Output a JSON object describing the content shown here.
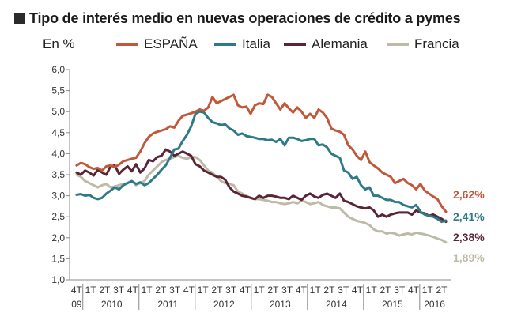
{
  "title": "Tipo de interés medio en nuevas operaciones de crédito a pymes",
  "unit_label": "En %",
  "colors": {
    "espana": "#c0583a",
    "italia": "#2f7a88",
    "alemania": "#5a2536",
    "francia": "#bdbaa6",
    "axis": "#888888"
  },
  "chart_data": {
    "type": "line",
    "title": "Tipo de interés medio en nuevas operaciones de crédito a pymes",
    "ylabel": "En %",
    "ylim": [
      1.0,
      6.0
    ],
    "yticks": [
      "6,0",
      "5,5",
      "5,0",
      "4,5",
      "4,0",
      "3,5",
      "3,0",
      "2,5",
      "2,0",
      "1,5",
      "1,0"
    ],
    "ytick_values": [
      6.0,
      5.5,
      5.0,
      4.5,
      4.0,
      3.5,
      3.0,
      2.5,
      2.0,
      1.5,
      1.0
    ],
    "quarter_labels": [
      "4T",
      "1T",
      "2T",
      "3T",
      "4T",
      "1T",
      "2T",
      "3T",
      "4T",
      "1T",
      "2T",
      "3T",
      "4T",
      "1T",
      "2T",
      "3T",
      "4T",
      "1T",
      "2T",
      "3T",
      "4T",
      "1T",
      "2T",
      "3T",
      "4T",
      "1T",
      "2T"
    ],
    "year_labels": [
      "09",
      "2010",
      "2011",
      "2012",
      "2013",
      "2014",
      "2015",
      "2016"
    ],
    "year_label_quarter_index": [
      0,
      2.5,
      6.5,
      10.5,
      14.5,
      18.5,
      22.5,
      25.5
    ],
    "x_start_label": "4T 2009",
    "months_per_point": 1,
    "series": [
      {
        "name": "ESPAÑA",
        "key": "espana",
        "end_label": "2,62%",
        "values": [
          3.72,
          3.78,
          3.75,
          3.68,
          3.64,
          3.66,
          3.6,
          3.7,
          3.72,
          3.68,
          3.74,
          3.82,
          3.85,
          3.88,
          3.9,
          4.05,
          4.25,
          4.4,
          4.48,
          4.52,
          4.55,
          4.58,
          4.65,
          4.62,
          4.78,
          4.9,
          4.93,
          4.96,
          5.0,
          5.05,
          5.02,
          5.1,
          5.35,
          5.2,
          5.25,
          5.3,
          5.35,
          5.4,
          5.15,
          5.1,
          5.12,
          4.95,
          5.15,
          5.2,
          5.18,
          5.4,
          5.35,
          5.2,
          5.05,
          5.2,
          5.08,
          4.98,
          5.1,
          5.0,
          4.85,
          4.95,
          4.85,
          5.05,
          4.98,
          4.85,
          4.6,
          4.55,
          4.52,
          4.45,
          4.2,
          4.1,
          3.95,
          3.85,
          4.05,
          3.8,
          3.72,
          3.65,
          3.55,
          3.5,
          3.45,
          3.3,
          3.35,
          3.4,
          3.3,
          3.25,
          3.15,
          3.28,
          3.12,
          3.05,
          2.98,
          2.92,
          2.75,
          2.62
        ]
      },
      {
        "name": "Italia",
        "key": "italia",
        "end_label": "2,41%",
        "values": [
          3.02,
          3.04,
          3.0,
          3.02,
          2.95,
          2.92,
          2.95,
          3.05,
          3.12,
          3.2,
          3.15,
          3.25,
          3.3,
          3.35,
          3.28,
          3.32,
          3.25,
          3.3,
          3.4,
          3.5,
          3.62,
          3.72,
          3.9,
          4.1,
          4.12,
          4.3,
          4.45,
          4.65,
          4.95,
          5.0,
          4.98,
          4.85,
          4.75,
          4.72,
          4.68,
          4.7,
          4.6,
          4.55,
          4.45,
          4.48,
          4.42,
          4.4,
          4.38,
          4.35,
          4.35,
          4.32,
          4.33,
          4.28,
          4.35,
          4.2,
          4.38,
          4.38,
          4.35,
          4.3,
          4.32,
          4.35,
          4.35,
          4.2,
          4.22,
          4.15,
          4.0,
          3.95,
          3.9,
          3.6,
          3.55,
          3.4,
          3.45,
          3.25,
          3.15,
          3.2,
          3.0,
          3.0,
          2.95,
          2.9,
          2.9,
          2.85,
          2.85,
          2.78,
          2.75,
          2.72,
          2.78,
          2.62,
          2.55,
          2.52,
          2.5,
          2.45,
          2.38,
          2.41
        ]
      },
      {
        "name": "Alemania",
        "key": "alemania",
        "end_label": "2,38%",
        "values": [
          3.55,
          3.5,
          3.6,
          3.55,
          3.48,
          3.62,
          3.55,
          3.5,
          3.7,
          3.72,
          3.52,
          3.62,
          3.7,
          3.58,
          3.75,
          3.55,
          3.65,
          3.85,
          3.82,
          3.92,
          3.95,
          4.1,
          4.05,
          3.95,
          4.0,
          4.05,
          4.0,
          3.95,
          3.75,
          3.7,
          3.6,
          3.55,
          3.5,
          3.45,
          3.45,
          3.38,
          3.2,
          3.1,
          3.05,
          3.0,
          2.98,
          2.95,
          2.92,
          3.0,
          2.95,
          3.0,
          3.0,
          2.98,
          2.95,
          2.95,
          2.92,
          3.0,
          2.95,
          2.9,
          3.0,
          3.05,
          2.98,
          2.95,
          3.02,
          3.05,
          3.0,
          2.95,
          3.05,
          2.88,
          2.85,
          2.8,
          2.75,
          2.72,
          2.7,
          2.72,
          2.65,
          2.5,
          2.55,
          2.5,
          2.55,
          2.58,
          2.6,
          2.6,
          2.6,
          2.55,
          2.65,
          2.6,
          2.58,
          2.52,
          2.55,
          2.5,
          2.45,
          2.38
        ]
      },
      {
        "name": "Francia",
        "key": "francia",
        "end_label": "1,89%",
        "values": [
          3.5,
          3.45,
          3.35,
          3.3,
          3.25,
          3.2,
          3.25,
          3.28,
          3.2,
          3.22,
          3.25,
          3.28,
          3.3,
          3.35,
          3.25,
          3.3,
          3.35,
          3.5,
          3.6,
          3.7,
          3.8,
          3.85,
          3.88,
          3.92,
          3.95,
          3.9,
          3.88,
          3.92,
          3.92,
          3.85,
          3.72,
          3.6,
          3.55,
          3.45,
          3.35,
          3.3,
          3.28,
          3.25,
          3.1,
          3.05,
          3.0,
          2.95,
          2.92,
          2.92,
          2.9,
          2.88,
          2.85,
          2.85,
          2.82,
          2.8,
          2.82,
          2.85,
          2.82,
          2.88,
          2.85,
          2.8,
          2.82,
          2.85,
          2.78,
          2.75,
          2.72,
          2.72,
          2.7,
          2.6,
          2.5,
          2.45,
          2.4,
          2.38,
          2.35,
          2.3,
          2.2,
          2.15,
          2.15,
          2.1,
          2.12,
          2.1,
          2.05,
          2.08,
          2.1,
          2.08,
          2.12,
          2.1,
          2.08,
          2.05,
          2.02,
          1.98,
          1.95,
          1.89
        ]
      }
    ]
  }
}
